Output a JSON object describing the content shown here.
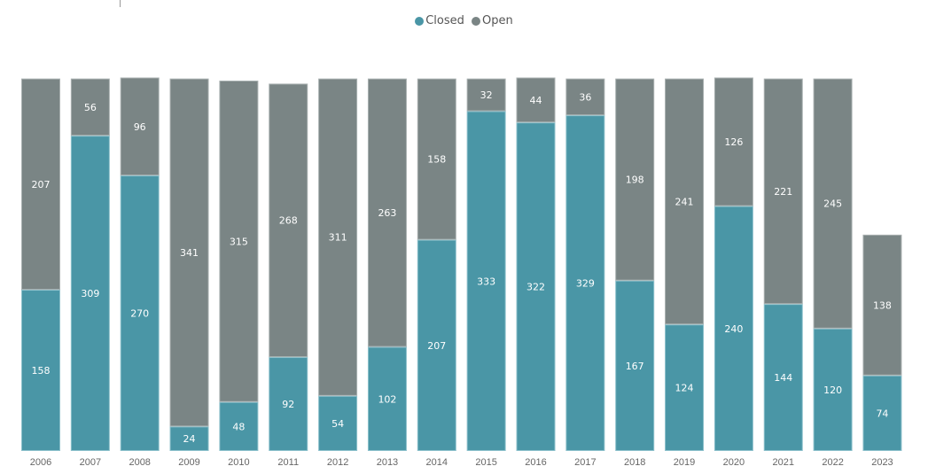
{
  "chart_data": {
    "type": "bar",
    "stacked": true,
    "categories": [
      "2006",
      "2007",
      "2008",
      "2009",
      "2010",
      "2011",
      "2012",
      "2013",
      "2014",
      "2015",
      "2016",
      "2017",
      "2018",
      "2019",
      "2020",
      "2021",
      "2022",
      "2023"
    ],
    "series": [
      {
        "name": "Closed",
        "color": "#4a96a6",
        "values": [
          158,
          309,
          270,
          24,
          48,
          92,
          54,
          102,
          207,
          333,
          322,
          329,
          167,
          124,
          240,
          144,
          120,
          74
        ]
      },
      {
        "name": "Open",
        "color": "#7a8585",
        "values": [
          207,
          56,
          96,
          341,
          315,
          268,
          311,
          263,
          158,
          32,
          44,
          36,
          198,
          241,
          126,
          221,
          245,
          138
        ]
      }
    ],
    "ylim": [
      0,
      366
    ],
    "legend_position": "top-center",
    "grid": false,
    "data_labels": true
  }
}
